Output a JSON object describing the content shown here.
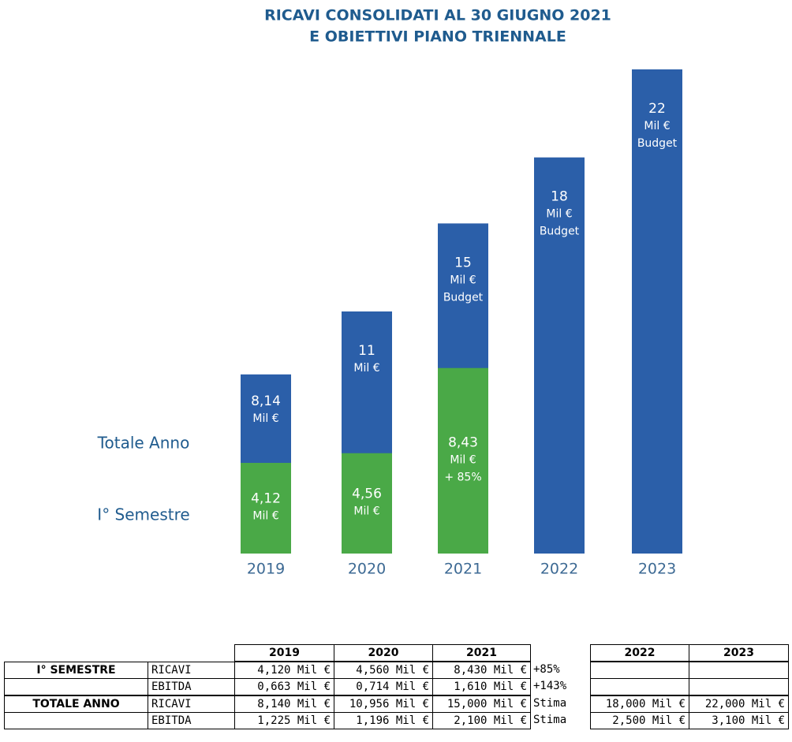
{
  "chart_data": {
    "type": "bar",
    "title": [
      "RICAVI CONSOLIDATI AL 30 GIUGNO 2021",
      "E OBIETTIVI PIANO TRIENNALE"
    ],
    "categories": [
      "2019",
      "2020",
      "2021",
      "2022",
      "2023"
    ],
    "series": [
      {
        "name": "Totale Anno",
        "color": "#2b5fa9",
        "values": [
          8.14,
          11,
          15,
          18,
          22
        ],
        "value_labels": [
          [
            "8,14",
            "Mil €"
          ],
          [
            "11",
            "Mil €"
          ],
          [
            "15",
            "Mil €",
            "Budget"
          ],
          [
            "18",
            "Mil €",
            "Budget"
          ],
          [
            "22",
            "Mil €",
            "Budget"
          ]
        ]
      },
      {
        "name": "I° Semestre",
        "color": "#4aa947",
        "values": [
          4.12,
          4.56,
          8.43,
          null,
          null
        ],
        "value_labels": [
          [
            "4,12",
            "Mil €"
          ],
          [
            "4,56",
            "Mil €"
          ],
          [
            "8,43",
            "Mil €",
            "+ 85%"
          ],
          null,
          null
        ]
      }
    ]
  },
  "table": {
    "years": [
      "2019",
      "2020",
      "2021"
    ],
    "future_years": [
      "2022",
      "2023"
    ],
    "rows": [
      {
        "group": "I° SEMESTRE",
        "metric": "RICAVI",
        "values": [
          "4,120 Mil €",
          "4,560 Mil €",
          "8,430 Mil €"
        ],
        "note": "+85%",
        "future": []
      },
      {
        "metric": "EBITDA",
        "values": [
          "0,663 Mil €",
          "0,714 Mil €",
          "1,610 Mil €"
        ],
        "note": "+143%",
        "future": []
      },
      {
        "group": "TOTALE ANNO",
        "metric": "RICAVI",
        "values": [
          "8,140 Mil €",
          "10,956 Mil €",
          "15,000 Mil €"
        ],
        "note": "Stima",
        "future": [
          "18,000 Mil €",
          "22,000 Mil €"
        ]
      },
      {
        "metric": "EBITDA",
        "values": [
          "1,225 Mil €",
          "1,196 Mil €",
          "2,100 Mil €"
        ],
        "note": "Stima",
        "future": [
          "2,500 Mil €",
          "3,100 Mil €"
        ]
      }
    ]
  }
}
